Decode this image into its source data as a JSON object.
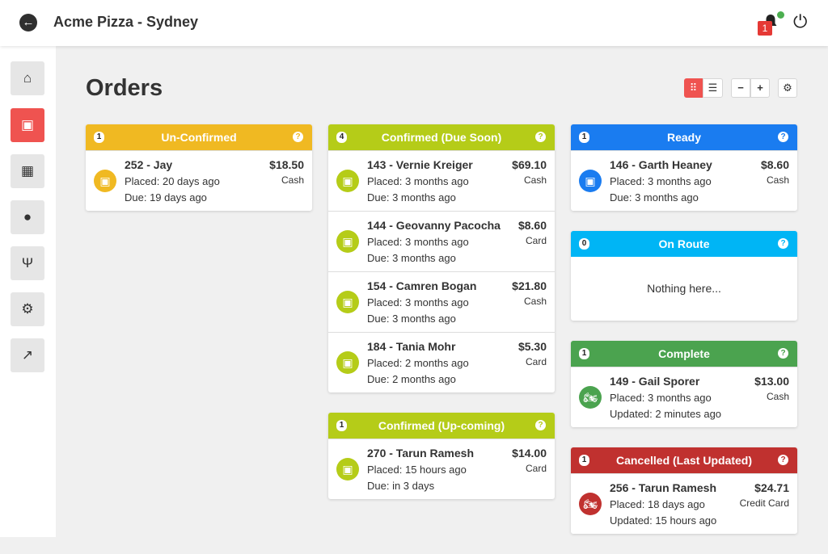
{
  "header": {
    "title": "Acme Pizza - Sydney",
    "notification_count": "1"
  },
  "page": {
    "title": "Orders"
  },
  "toolbar": {
    "grid_view": "grid-view",
    "list_view": "list-view",
    "zoom_out": "−",
    "zoom_in": "+"
  },
  "sidebar": {
    "items": [
      {
        "icon": "home-icon"
      },
      {
        "icon": "shopping-bag-icon",
        "active": true
      },
      {
        "icon": "calendar-icon"
      },
      {
        "icon": "user-icon"
      },
      {
        "icon": "utensils-icon"
      },
      {
        "icon": "gear-icon"
      },
      {
        "icon": "external-link-icon"
      }
    ]
  },
  "columns": [
    [
      {
        "title": "Un-Confirmed",
        "count": "1",
        "color": "#f0b922",
        "icon": "shopping-bag-icon",
        "orders": [
          {
            "name": "252 - Jay",
            "line2": "Placed: 20 days ago",
            "line3": "Due: 19 days ago",
            "price": "$18.50",
            "payment": "Cash"
          }
        ]
      }
    ],
    [
      {
        "title": "Confirmed (Due Soon)",
        "count": "4",
        "color": "#b5cc18",
        "icon": "shopping-bag-icon",
        "orders": [
          {
            "name": "143 - Vernie Kreiger",
            "line2": "Placed: 3 months ago",
            "line3": "Due: 3 months ago",
            "price": "$69.10",
            "payment": "Cash"
          },
          {
            "name": "144 - Geovanny Pacocha",
            "line2": "Placed: 3 months ago",
            "line3": "Due: 3 months ago",
            "price": "$8.60",
            "payment": "Card"
          },
          {
            "name": "154 - Camren Bogan",
            "line2": "Placed: 3 months ago",
            "line3": "Due: 3 months ago",
            "price": "$21.80",
            "payment": "Cash"
          },
          {
            "name": "184 - Tania Mohr",
            "line2": "Placed: 2 months ago",
            "line3": "Due: 2 months ago",
            "price": "$5.30",
            "payment": "Card"
          }
        ]
      },
      {
        "title": "Confirmed (Up-coming)",
        "count": "1",
        "color": "#b5cc18",
        "icon": "shopping-bag-icon",
        "orders": [
          {
            "name": "270 - Tarun Ramesh",
            "line2": "Placed: 15 hours ago",
            "line3": "Due: in 3 days",
            "price": "$14.00",
            "payment": "Card"
          }
        ]
      }
    ],
    [
      {
        "title": "Ready",
        "count": "1",
        "color": "#1a7cf0",
        "icon": "shopping-bag-icon",
        "orders": [
          {
            "name": "146 - Garth Heaney",
            "line2": "Placed: 3 months ago",
            "line3": "Due: 3 months ago",
            "price": "$8.60",
            "payment": "Cash"
          }
        ]
      },
      {
        "title": "On Route",
        "count": "0",
        "color": "#00b5f5",
        "icon": "motorcycle-icon",
        "orders": [],
        "empty": "Nothing here..."
      },
      {
        "title": "Complete",
        "count": "1",
        "color": "#4ba34f",
        "icon": "motorcycle-icon",
        "orders": [
          {
            "name": "149 - Gail Sporer",
            "line2": "Placed: 3 months ago",
            "line3": "Updated: 2 minutes ago",
            "price": "$13.00",
            "payment": "Cash"
          }
        ]
      },
      {
        "title": "Cancelled (Last Updated)",
        "count": "1",
        "color": "#c0312f",
        "icon": "motorcycle-icon",
        "orders": [
          {
            "name": "256 - Tarun Ramesh",
            "line2": "Placed: 18 days ago",
            "line3": "Updated: 15 hours ago",
            "price": "$24.71",
            "payment": "Credit Card"
          }
        ]
      }
    ]
  ]
}
